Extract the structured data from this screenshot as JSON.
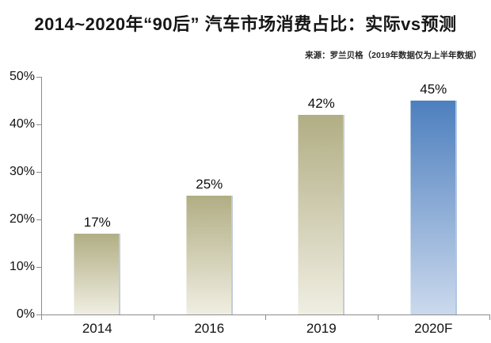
{
  "chart_data": {
    "type": "bar",
    "title": "2014~2020年“90后” 汽车市场消费占比：实际vs预测",
    "source_note": "来源：罗兰贝格（2019年数据仅为上半年数据）",
    "categories": [
      "2014",
      "2016",
      "2019",
      "2020F"
    ],
    "values": [
      17,
      25,
      42,
      45
    ],
    "bar_labels": [
      "17%",
      "25%",
      "42%",
      "45%"
    ],
    "series_types": [
      "actual",
      "actual",
      "actual",
      "forecast"
    ],
    "series_legend": {
      "actual": "实际",
      "forecast": "预测"
    },
    "xlabel": "",
    "ylabel": "",
    "ylim": [
      0,
      50
    ],
    "yticks": [
      0,
      10,
      20,
      30,
      40,
      50
    ],
    "ytick_labels": [
      "0%",
      "10%",
      "20%",
      "30%",
      "40%",
      "50%"
    ],
    "grid": false,
    "legend": "none",
    "colors": {
      "actual_top": "#b1ae84",
      "actual_bottom": "#f0eee2",
      "actual_edge": "#c3ccd8",
      "forecast_top": "#4d7fbe",
      "forecast_bottom": "#cbd9ed",
      "forecast_edge": "#b3c7e2",
      "axis": "#8c8c8c",
      "text": "#121212"
    }
  }
}
